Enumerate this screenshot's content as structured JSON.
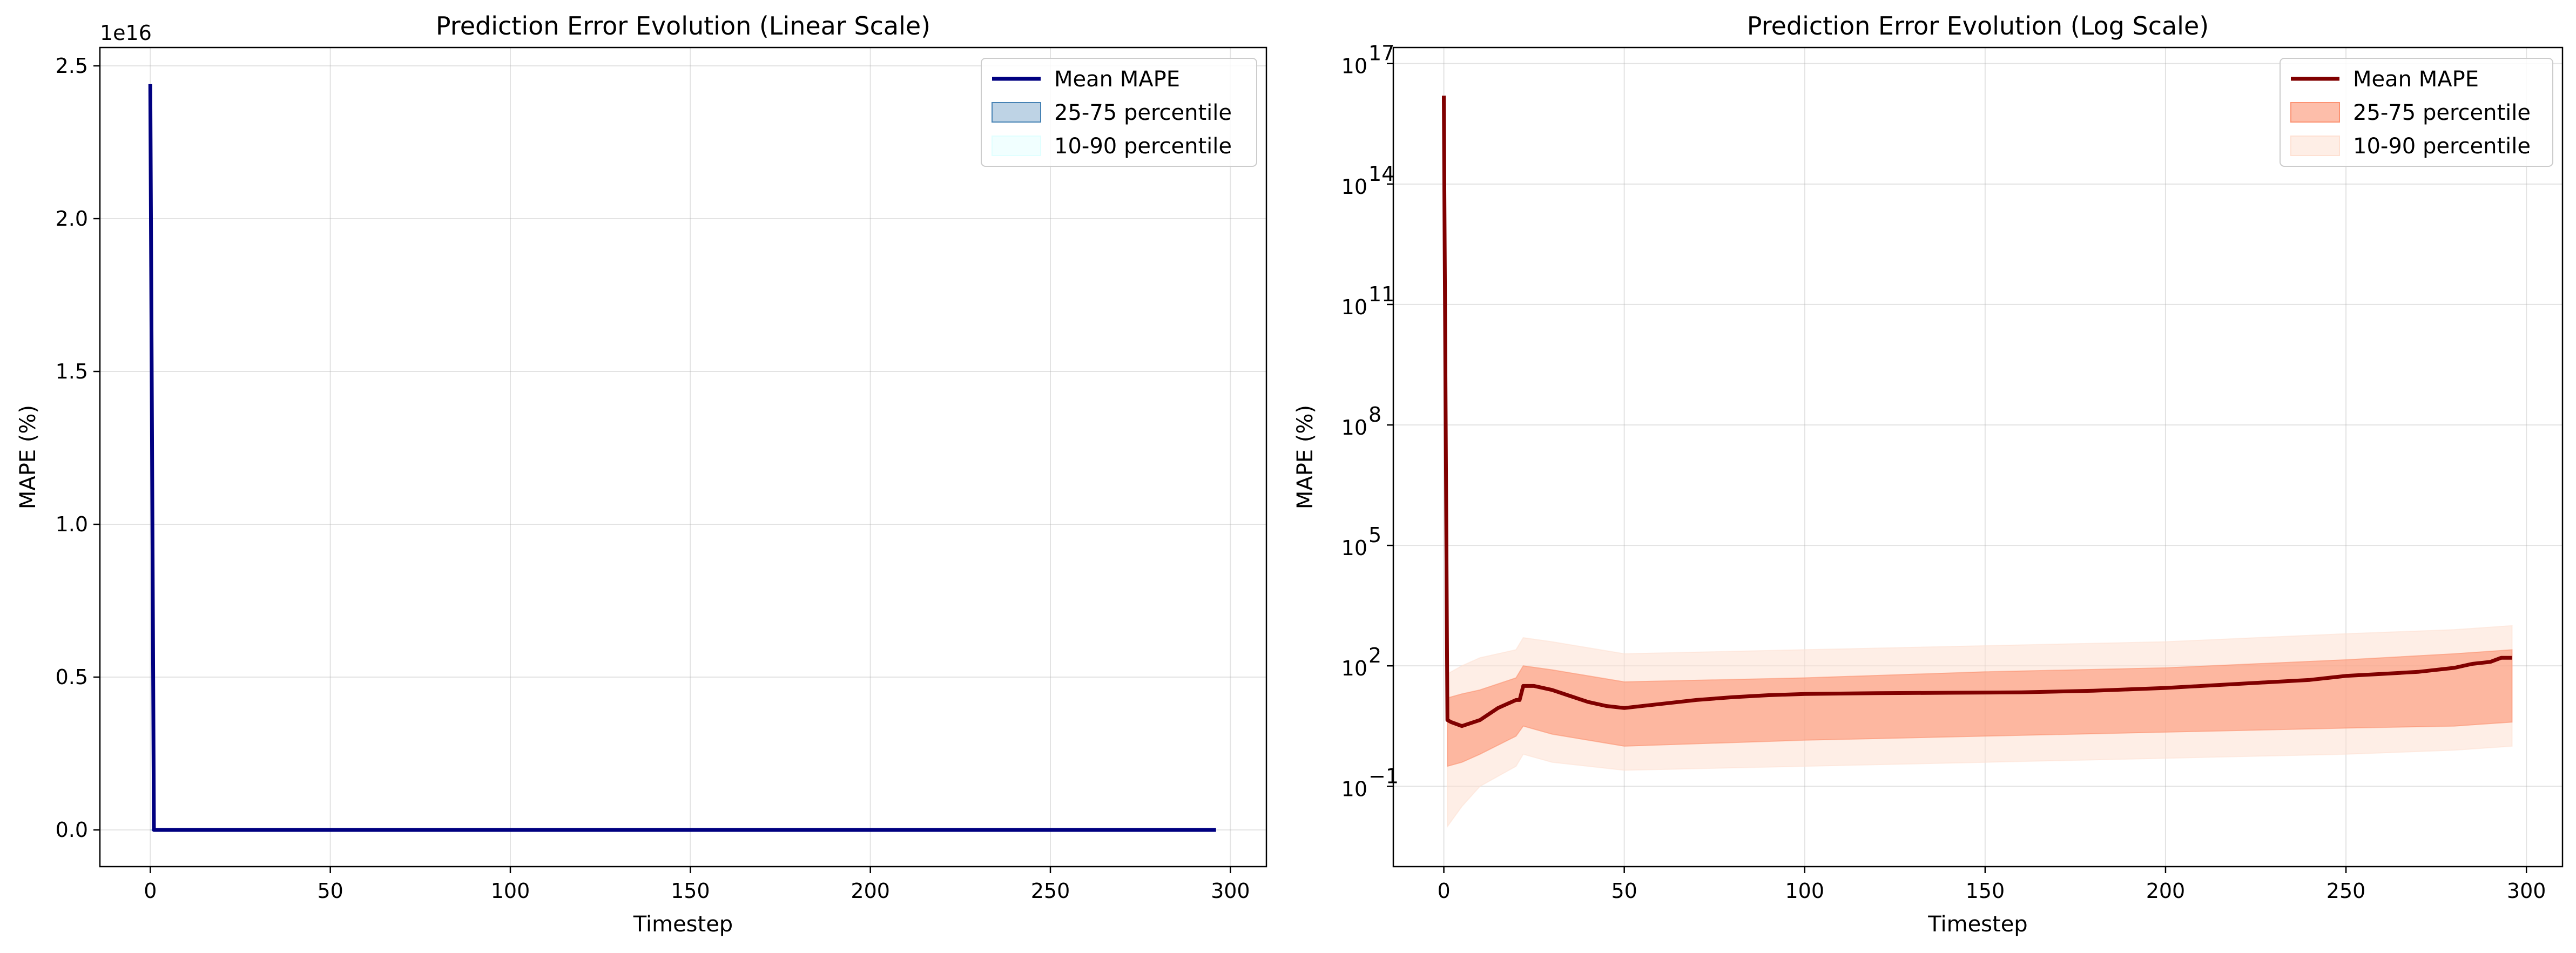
{
  "chart_data": [
    {
      "type": "line",
      "title": "Prediction Error Evolution (Linear Scale)",
      "xlabel": "Timestep",
      "ylabel": "MAPE (%)",
      "y_offset_label": "1e16",
      "yscale": "linear",
      "xlim": [
        -14,
        310
      ],
      "ylim": [
        -0.12,
        2.56
      ],
      "xticks": [
        0,
        50,
        100,
        150,
        200,
        250,
        300
      ],
      "yticks": [
        0.0,
        0.5,
        1.0,
        1.5,
        2.0,
        2.5
      ],
      "ytick_labels": [
        "0.0",
        "0.5",
        "1.0",
        "1.5",
        "2.0",
        "2.5"
      ],
      "grid": true,
      "legend_position": "top-right",
      "colors": {
        "mean": "#000080",
        "iqr": "#4682b4",
        "p1090": "#e0ffff"
      },
      "series": [
        {
          "name": "Mean MAPE",
          "x": [
            0,
            1,
            2,
            296
          ],
          "y": [
            2.44,
            0.0,
            0.0,
            0.0
          ]
        },
        {
          "name": "25-75 percentile",
          "x": [
            0,
            1,
            296
          ],
          "lower": [
            0,
            0,
            0
          ],
          "upper": [
            0,
            0,
            0
          ]
        },
        {
          "name": "10-90 percentile",
          "x": [
            0,
            1,
            296
          ],
          "lower": [
            0,
            0,
            0
          ],
          "upper": [
            0,
            0,
            0
          ]
        }
      ]
    },
    {
      "type": "line",
      "title": "Prediction Error Evolution (Log Scale)",
      "xlabel": "Timestep",
      "ylabel": "MAPE (%)",
      "yscale": "log",
      "xlim": [
        -14,
        310
      ],
      "ylim_log10": [
        -3.0,
        17.4
      ],
      "xticks": [
        0,
        50,
        100,
        150,
        200,
        250,
        300
      ],
      "yticks_log10": [
        -1,
        2,
        5,
        8,
        11,
        14,
        17
      ],
      "ytick_labels": [
        "10",
        "10",
        "10",
        "10",
        "10",
        "10",
        "10"
      ],
      "ytick_exponents": [
        "−1",
        "2",
        "5",
        "8",
        "11",
        "14",
        "17"
      ],
      "grid": true,
      "legend_position": "top-right",
      "colors": {
        "mean": "#800000",
        "iqr": "#fc9272",
        "p1090": "#fee0d2"
      },
      "series": [
        {
          "name": "Mean MAPE",
          "x": [
            0,
            1,
            2,
            5,
            10,
            15,
            20,
            21,
            22,
            25,
            30,
            35,
            40,
            45,
            50,
            60,
            70,
            80,
            90,
            100,
            120,
            140,
            160,
            180,
            200,
            220,
            240,
            250,
            260,
            270,
            280,
            285,
            290,
            293,
            296
          ],
          "log10_y": [
            16.2,
            0.65,
            0.6,
            0.5,
            0.65,
            0.95,
            1.15,
            1.15,
            1.5,
            1.5,
            1.4,
            1.25,
            1.1,
            1.0,
            0.95,
            1.05,
            1.15,
            1.22,
            1.27,
            1.3,
            1.32,
            1.33,
            1.34,
            1.38,
            1.45,
            1.55,
            1.65,
            1.75,
            1.8,
            1.85,
            1.95,
            2.05,
            2.1,
            2.2,
            2.2
          ]
        },
        {
          "name": "25-75 percentile",
          "x": [
            1,
            5,
            10,
            20,
            22,
            30,
            50,
            100,
            150,
            200,
            250,
            280,
            296
          ],
          "lower": [
            -0.5,
            -0.4,
            -0.2,
            0.25,
            0.5,
            0.3,
            0.0,
            0.15,
            0.25,
            0.35,
            0.45,
            0.5,
            0.6
          ],
          "upper": [
            1.2,
            1.3,
            1.4,
            1.7,
            2.0,
            1.9,
            1.6,
            1.7,
            1.85,
            1.95,
            2.15,
            2.3,
            2.4
          ]
        },
        {
          "name": "10-90 percentile",
          "x": [
            1,
            5,
            10,
            20,
            22,
            30,
            50,
            100,
            150,
            200,
            250,
            280,
            296
          ],
          "lower": [
            -2.0,
            -1.5,
            -1.0,
            -0.5,
            -0.2,
            -0.4,
            -0.6,
            -0.5,
            -0.4,
            -0.3,
            -0.2,
            -0.1,
            0.0
          ],
          "upper": [
            1.8,
            2.0,
            2.2,
            2.4,
            2.7,
            2.6,
            2.3,
            2.4,
            2.5,
            2.6,
            2.8,
            2.9,
            3.0
          ]
        }
      ]
    }
  ]
}
